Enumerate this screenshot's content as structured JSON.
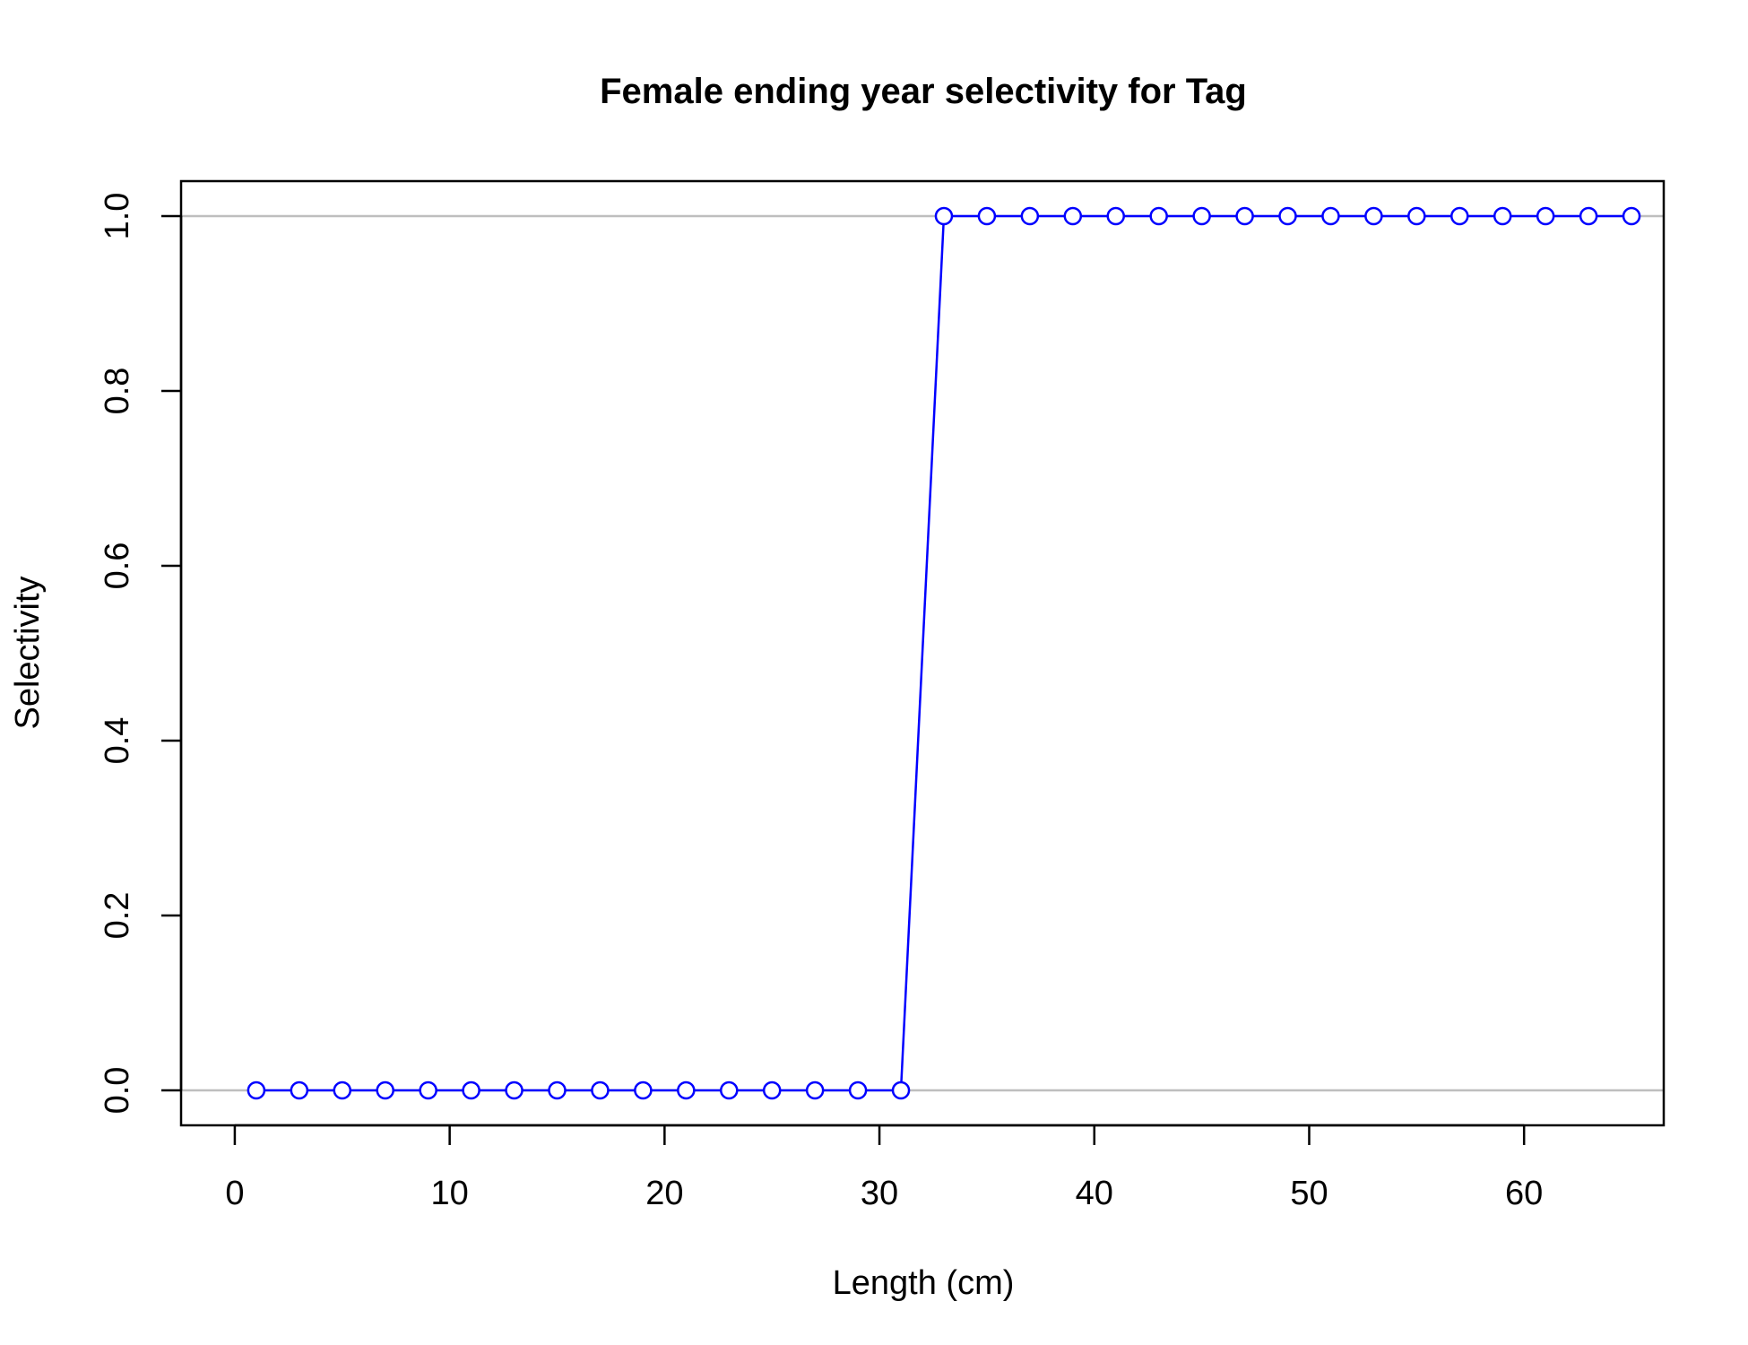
{
  "chart_data": {
    "type": "line",
    "title": "Female ending year selectivity for Tag",
    "xlabel": "Length (cm)",
    "ylabel": "Selectivity",
    "xlim": [
      -2.5,
      66.5
    ],
    "ylim": [
      -0.04,
      1.04
    ],
    "xticks": [
      0,
      10,
      20,
      30,
      40,
      50,
      60
    ],
    "xtick_labels": [
      "0",
      "10",
      "20",
      "30",
      "40",
      "50",
      "60"
    ],
    "yticks": [
      0.0,
      0.2,
      0.4,
      0.6,
      0.8,
      1.0
    ],
    "ytick_labels": [
      "0.0",
      "0.2",
      "0.4",
      "0.6",
      "0.8",
      "1.0"
    ],
    "reference_lines_y": [
      0,
      1
    ],
    "reference_line_color": "#bebebe",
    "series_color": "#0000ff",
    "marker": "open-circle",
    "x": [
      1,
      3,
      5,
      7,
      9,
      11,
      13,
      15,
      17,
      19,
      21,
      23,
      25,
      27,
      29,
      31,
      33,
      35,
      37,
      39,
      41,
      43,
      45,
      47,
      49,
      51,
      53,
      55,
      57,
      59,
      61,
      63,
      65
    ],
    "y": [
      0,
      0,
      0,
      0,
      0,
      0,
      0,
      0,
      0,
      0,
      0,
      0,
      0,
      0,
      0,
      0,
      1,
      1,
      1,
      1,
      1,
      1,
      1,
      1,
      1,
      1,
      1,
      1,
      1,
      1,
      1,
      1,
      1
    ]
  }
}
